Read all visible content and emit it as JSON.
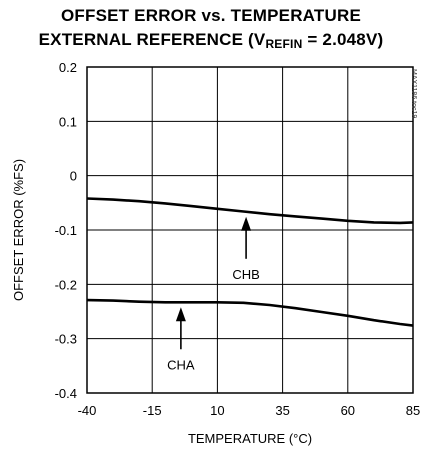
{
  "title_line1": "OFFSET ERROR vs. TEMPERATURE",
  "title_line2_prefix": "EXTERNAL REFERENCE (V",
  "title_line2_sub": "REFIN",
  "title_line2_suffix": " = 2.048V)",
  "part_code": "MAX1186 toc19",
  "chart_data": {
    "type": "line",
    "title": "OFFSET ERROR vs. TEMPERATURE EXTERNAL REFERENCE (VREFIN = 2.048V)",
    "xlabel": "TEMPERATURE (°C)",
    "ylabel": "OFFSET ERROR (%FS)",
    "xlim": [
      -40,
      85
    ],
    "ylim": [
      -0.4,
      0.2
    ],
    "xticks": [
      -40,
      -15,
      10,
      35,
      60,
      85
    ],
    "xtick_labels": [
      "-40",
      "-15",
      "10",
      "35",
      "60",
      "85"
    ],
    "yticks": [
      0.2,
      0.1,
      0,
      -0.1,
      -0.2,
      -0.3,
      -0.4
    ],
    "ytick_labels": [
      "0.2",
      "0.1",
      "0",
      "-0.1",
      "-0.2",
      "-0.3",
      "-0.4"
    ],
    "grid": true,
    "series": [
      {
        "name": "CHB",
        "x": [
          -40,
          -30,
          -20,
          -10,
          0,
          10,
          20,
          30,
          40,
          50,
          60,
          70,
          80,
          85
        ],
        "y": [
          -0.042,
          -0.044,
          -0.047,
          -0.051,
          -0.056,
          -0.061,
          -0.066,
          -0.071,
          -0.075,
          -0.079,
          -0.083,
          -0.086,
          -0.087,
          -0.086
        ]
      },
      {
        "name": "CHA",
        "x": [
          -40,
          -30,
          -20,
          -10,
          0,
          10,
          20,
          30,
          40,
          50,
          60,
          70,
          80,
          85
        ],
        "y": [
          -0.229,
          -0.23,
          -0.232,
          -0.233,
          -0.233,
          -0.233,
          -0.234,
          -0.238,
          -0.244,
          -0.251,
          -0.258,
          -0.266,
          -0.273,
          -0.276
        ]
      }
    ],
    "annotations": [
      {
        "label": "CHB",
        "series": "CHB",
        "x": 21
      },
      {
        "label": "CHA",
        "series": "CHA",
        "x": -4
      }
    ]
  }
}
